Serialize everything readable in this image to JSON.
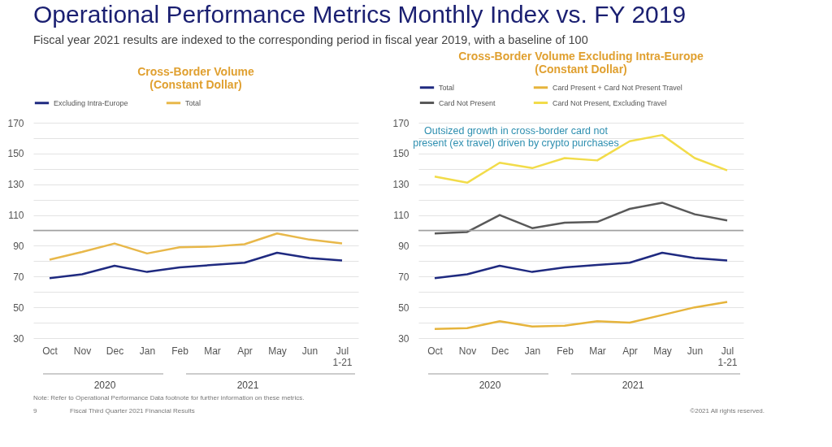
{
  "chart_data": [
    {
      "type": "line",
      "title": "Cross-Border Volume\n(Constant Dollar)",
      "categories": [
        "Oct",
        "Nov",
        "Dec",
        "Jan",
        "Feb",
        "Mar",
        "Apr",
        "May",
        "Jun",
        "Jul 1-21"
      ],
      "series": [
        {
          "name": "Excluding Intra-Europe",
          "color": "#1f2a80",
          "values": [
            69,
            71.5,
            77,
            73,
            76,
            77.5,
            79,
            85.5,
            82,
            80.5
          ]
        },
        {
          "name": "Total",
          "color": "#e8b84a",
          "values": [
            81,
            86,
            91.5,
            85,
            89,
            89.5,
            91,
            98,
            94,
            91.5
          ]
        }
      ],
      "ylim": [
        30,
        170
      ],
      "yticks": [
        30,
        {
          "value": 40,
          "label": null
        },
        50,
        {
          "value": 60,
          "label": null
        },
        70,
        {
          "value": 80,
          "label": null
        },
        90,
        {
          "value": 100,
          "label": null
        },
        110,
        {
          "value": 120,
          "label": null
        },
        130,
        {
          "value": 140,
          "label": null
        },
        150,
        {
          "value": 160,
          "label": null
        },
        170
      ],
      "ref_lines": [
        {
          "axis": "y",
          "value": 100,
          "color": "#a0a0a0"
        }
      ],
      "grid": "y",
      "legend": "top",
      "annotations": [
        "Operational Performance Metrics Monthly Index vs. FY 2019",
        "Fiscal year 2021 results are indexed to the corresponding period in fiscal year 2019, with a baseline of 100",
        "2020",
        "2021",
        "Note: Refer to Operational Performance Data footnote for further information on these metrics.",
        "9",
        "Fiscal Third Quarter 2021 Financial Results",
        "©2021 All rights reserved."
      ]
    },
    {
      "type": "line",
      "title": "Cross-Border Volume Excluding Intra-Europe\n(Constant Dollar)",
      "categories": [
        "Oct",
        "Nov",
        "Dec",
        "Jan",
        "Feb",
        "Mar",
        "Apr",
        "May",
        "Jun",
        "Jul 1-21"
      ],
      "series": [
        {
          "name": "Total",
          "color": "#1f2a80",
          "values": [
            69,
            71.5,
            77,
            73,
            76,
            77.5,
            79,
            85.5,
            82,
            80.5
          ]
        },
        {
          "name": "Card Present + Card Not Present Travel",
          "color": "#e6b43c",
          "values": [
            36,
            36.5,
            41,
            37.5,
            38,
            41,
            40,
            45,
            50,
            53.5
          ]
        },
        {
          "name": "Card Not Present",
          "color": "#595959",
          "values": [
            98,
            99,
            110,
            101.5,
            105,
            105.5,
            114,
            118,
            110.5,
            106.5
          ]
        },
        {
          "name": "Card Not Present, Excluding Travel",
          "color": "#f2dc4a",
          "values": [
            135,
            131,
            144,
            140.5,
            147,
            145.5,
            158,
            162,
            147,
            139
          ]
        }
      ],
      "ylim": [
        30,
        170
      ],
      "yticks": [
        30,
        {
          "value": 40,
          "label": null
        },
        50,
        {
          "value": 60,
          "label": null
        },
        70,
        {
          "value": 80,
          "label": null
        },
        90,
        {
          "value": 100,
          "label": null
        },
        110,
        {
          "value": 120,
          "label": null
        },
        130,
        {
          "value": 140,
          "label": null
        },
        150,
        {
          "value": 160,
          "label": null
        },
        170
      ],
      "ref_lines": [
        {
          "axis": "y",
          "value": 100,
          "color": "#a0a0a0"
        }
      ],
      "grid": "y",
      "legend": "top",
      "annotations": [
        "Outsized growth in cross-border card not\npresent (ex travel) driven by crypto purchases",
        "2020",
        "2021"
      ]
    }
  ]
}
